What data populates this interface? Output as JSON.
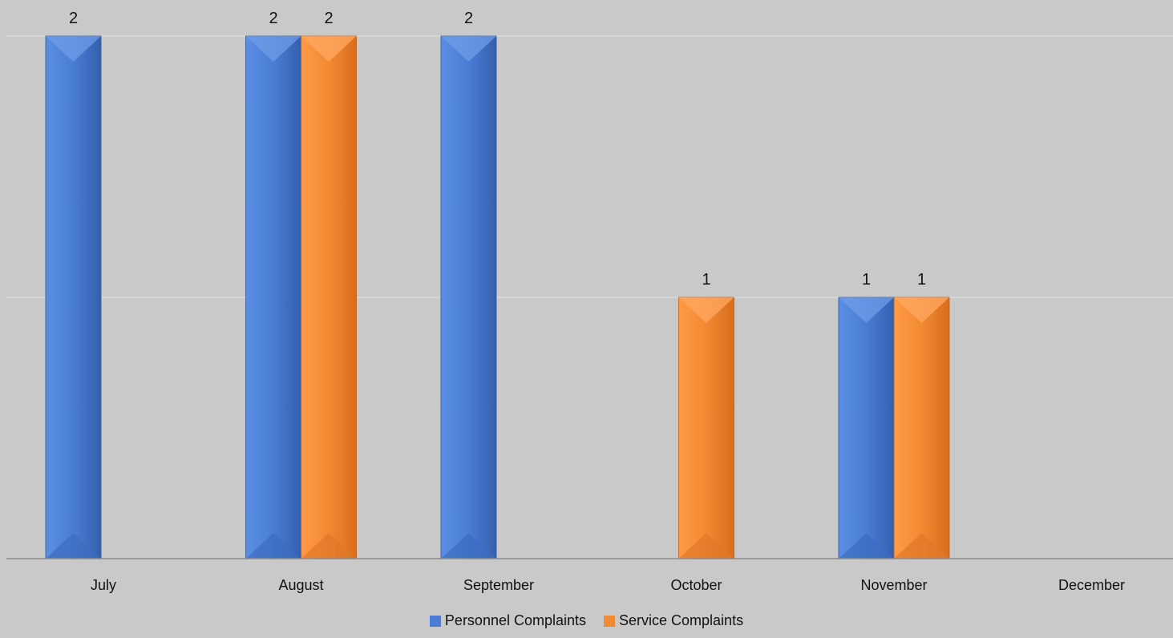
{
  "chart_data": {
    "type": "bar",
    "categories": [
      "July",
      "August",
      "September",
      "October",
      "November",
      "December"
    ],
    "series": [
      {
        "name": "Personnel Complaints",
        "values": [
          2,
          2,
          2,
          null,
          1,
          null
        ],
        "color": "#4a7dd4"
      },
      {
        "name": "Service Complaints",
        "values": [
          null,
          2,
          null,
          1,
          1,
          null
        ],
        "color": "#f28a32"
      }
    ],
    "ylim": [
      0,
      2
    ],
    "grid": true,
    "legend_position": "bottom",
    "data_labels": true,
    "background": "#c9c9c9"
  }
}
